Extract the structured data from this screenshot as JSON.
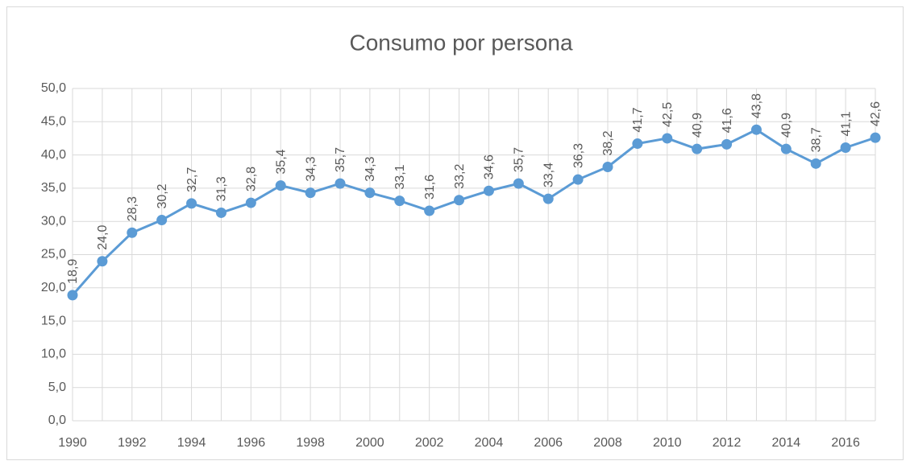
{
  "chart_data": {
    "type": "line",
    "title": "Consumo por persona",
    "categories": [
      "1990",
      null,
      "1992",
      null,
      "1994",
      null,
      "1996",
      null,
      "1998",
      null,
      "2000",
      null,
      "2002",
      null,
      "2004",
      null,
      "2006",
      null,
      "2008",
      null,
      "2010",
      null,
      "2012",
      null,
      "2014",
      null,
      "2016",
      null
    ],
    "series": [
      {
        "name": "Consumo por persona",
        "color": "#5b9bd5",
        "values": [
          18.9,
          24.0,
          28.3,
          30.2,
          32.7,
          31.3,
          32.8,
          35.4,
          34.3,
          35.7,
          34.3,
          33.1,
          31.6,
          33.2,
          34.6,
          35.7,
          33.4,
          36.3,
          38.2,
          41.7,
          42.5,
          40.9,
          41.6,
          43.8,
          40.9,
          38.7,
          41.1,
          42.6
        ],
        "value_labels": [
          "18,9",
          "24,0",
          "28,3",
          "30,2",
          "32,7",
          "31,3",
          "32,8",
          "35,4",
          "34,3",
          "35,7",
          "34,3",
          "33,1",
          "31,6",
          "33,2",
          "34,6",
          "35,7",
          "33,4",
          "36,3",
          "38,2",
          "41,7",
          "42,5",
          "40,9",
          "41,6",
          "43,8",
          "40,9",
          "38,7",
          "41,1",
          "42,6"
        ]
      }
    ],
    "ylim": [
      0,
      50
    ],
    "yticks": [
      {
        "value": 0,
        "label": "0,0"
      },
      {
        "value": 5,
        "label": "5,0"
      },
      {
        "value": 10,
        "label": "10,0"
      },
      {
        "value": 15,
        "label": "15,0"
      },
      {
        "value": 20,
        "label": "20,0"
      },
      {
        "value": 25,
        "label": "25,0"
      },
      {
        "value": 30,
        "label": "30,0"
      },
      {
        "value": 35,
        "label": "35,0"
      },
      {
        "value": 40,
        "label": "40,0"
      },
      {
        "value": 45,
        "label": "45,0"
      },
      {
        "value": 50,
        "label": "50,0"
      }
    ],
    "grid": true
  }
}
